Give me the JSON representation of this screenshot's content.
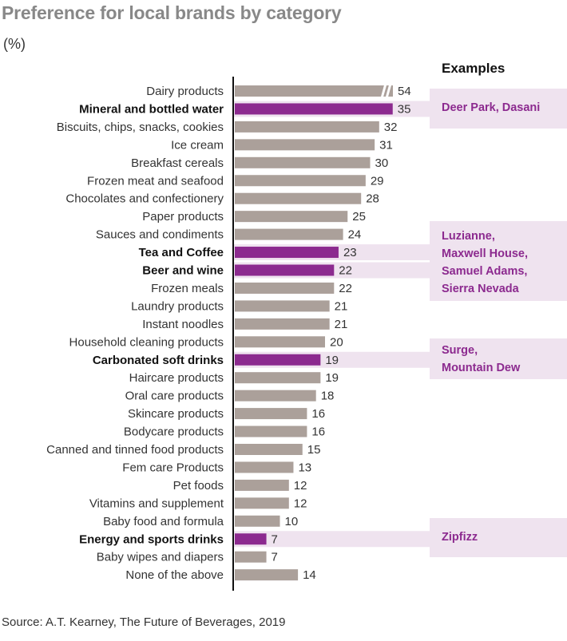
{
  "title": "Preference for local brands by category",
  "unit_label": "(%)",
  "examples_header": "Examples",
  "source": "Source: A.T. Kearney, The Future of Beverages, 2019",
  "colors": {
    "default_bar": "#aba09a",
    "highlight_bar": "#8c2a8f",
    "highlight_band": "#efe3ef",
    "axis": "#111111"
  },
  "chart_data": {
    "type": "bar",
    "orientation": "horizontal",
    "title": "Preference for local brands by category",
    "ylabel": "(%)",
    "categories": [
      "Dairy products",
      "Mineral and bottled water",
      "Biscuits, chips, snacks, cookies",
      "Ice cream",
      "Breakfast cereals",
      "Frozen meat and seafood",
      "Chocolates and confectionery",
      "Paper products",
      "Sauces and condiments",
      "Tea and Coffee",
      "Beer and wine",
      "Frozen meals",
      "Laundry products",
      "Instant noodles",
      "Household cleaning products",
      "Carbonated soft drinks",
      "Haircare products",
      "Oral care products",
      "Skincare products",
      "Bodycare products",
      "Canned and tinned food products",
      "Fem care Products",
      "Pet foods",
      "Vitamins and supplement",
      "Baby food and formula",
      "Energy and sports drinks",
      "Baby wipes and diapers",
      "None of the above"
    ],
    "values": [
      54,
      35,
      32,
      31,
      30,
      29,
      28,
      25,
      24,
      23,
      22,
      22,
      21,
      21,
      20,
      19,
      19,
      18,
      16,
      16,
      15,
      13,
      12,
      12,
      10,
      7,
      7,
      14
    ],
    "highlighted": [
      "Mineral and bottled water",
      "Tea and Coffee",
      "Beer and wine",
      "Carbonated soft drinks",
      "Energy and sports drinks"
    ],
    "axis_break": "Dairy products",
    "xlim": [
      0,
      40
    ]
  },
  "examples": [
    {
      "category": "Mineral and bottled water",
      "lines": [
        "Deer Park, Dasani"
      ]
    },
    {
      "category": "Tea and Coffee",
      "lines": [
        "Luzianne,",
        "Maxwell House,",
        "Samuel Adams,",
        "Sierra Nevada"
      ]
    },
    {
      "category": "Carbonated soft drinks",
      "lines": [
        "Surge,",
        "Mountain Dew"
      ]
    },
    {
      "category": "Energy and sports drinks",
      "lines": [
        "Zipfizz"
      ]
    }
  ]
}
